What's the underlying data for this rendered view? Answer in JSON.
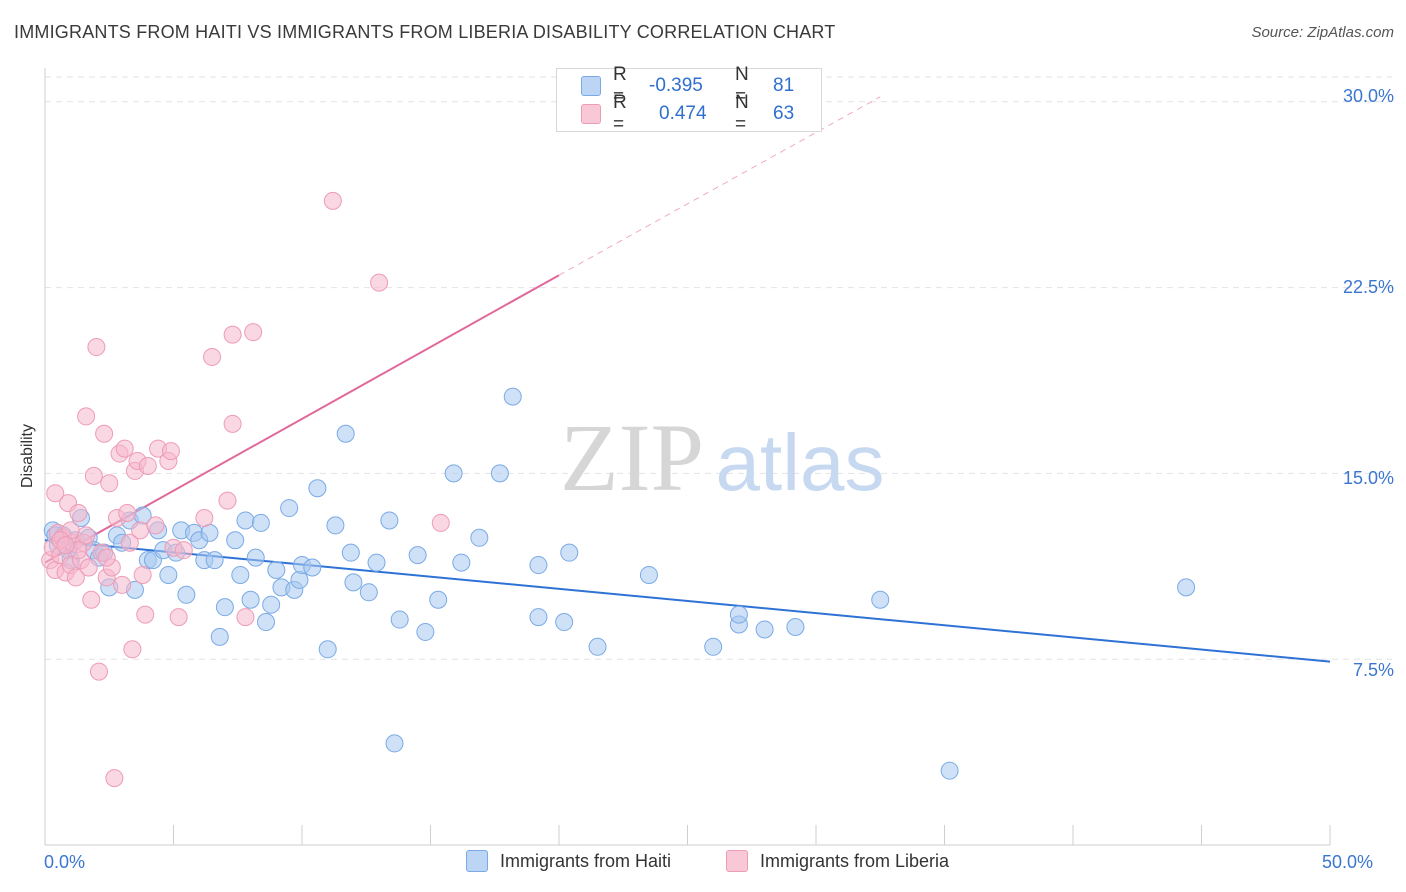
{
  "title": "IMMIGRANTS FROM HAITI VS IMMIGRANTS FROM LIBERIA DISABILITY CORRELATION CHART",
  "source": "Source: ZipAtlas.com",
  "watermark": {
    "zip": "ZIP",
    "atlas": "atlas"
  },
  "legend": {
    "rows": [
      {
        "r_label": "R =",
        "r_value": "-0.395",
        "n_label": "N =",
        "n_value": "81"
      },
      {
        "r_label": "R =",
        "r_value": "0.474",
        "n_label": "N =",
        "n_value": "63"
      }
    ]
  },
  "colors": {
    "haiti_fill": "#a8c8f0",
    "haiti_stroke": "#7aaae6",
    "haiti_line": "#2f72d6",
    "liberia_fill": "#f6b8cc",
    "liberia_stroke": "#ee9bb6",
    "liberia_line": "#e0689a",
    "axis_text": "#3a76d0",
    "grid": "#e2e2e2"
  },
  "chart_data": {
    "type": "scatter",
    "ylabel": "Disability",
    "xlabel": "",
    "xlim": [
      0,
      50
    ],
    "ylim": [
      0,
      31
    ],
    "x_tick_labels": [
      "0.0%",
      "50.0%"
    ],
    "y_ticks": [
      7.5,
      15.0,
      22.5,
      30.0
    ],
    "y_tick_labels": [
      "7.5%",
      "15.0%",
      "22.5%",
      "30.0%"
    ],
    "grid": true,
    "legend_position": "top-center",
    "series": [
      {
        "name": "Immigrants from Haiti",
        "r": -0.395,
        "n": 81,
        "trend": {
          "x": [
            0,
            50
          ],
          "y": [
            12.3,
            7.4
          ],
          "style": "solid"
        },
        "points": [
          [
            0.3,
            12.7
          ],
          [
            0.5,
            12.1
          ],
          [
            0.7,
            12.5
          ],
          [
            0.9,
            11.9
          ],
          [
            1.0,
            11.5
          ],
          [
            1.2,
            12.3
          ],
          [
            1.4,
            13.2
          ],
          [
            1.7,
            12.4
          ],
          [
            1.9,
            11.9
          ],
          [
            2.1,
            11.6
          ],
          [
            2.3,
            11.8
          ],
          [
            2.5,
            10.4
          ],
          [
            2.8,
            12.5
          ],
          [
            3.0,
            12.2
          ],
          [
            3.3,
            13.1
          ],
          [
            3.5,
            10.3
          ],
          [
            3.8,
            13.3
          ],
          [
            4.0,
            11.5
          ],
          [
            4.2,
            11.5
          ],
          [
            4.4,
            12.7
          ],
          [
            4.6,
            11.9
          ],
          [
            4.8,
            10.9
          ],
          [
            5.1,
            11.8
          ],
          [
            5.3,
            12.7
          ],
          [
            5.5,
            10.1
          ],
          [
            5.8,
            12.6
          ],
          [
            6.0,
            12.3
          ],
          [
            6.2,
            11.5
          ],
          [
            6.4,
            12.6
          ],
          [
            6.6,
            11.5
          ],
          [
            6.8,
            8.4
          ],
          [
            7.0,
            9.6
          ],
          [
            7.4,
            12.3
          ],
          [
            7.6,
            10.9
          ],
          [
            7.8,
            13.1
          ],
          [
            8.0,
            9.9
          ],
          [
            8.2,
            11.6
          ],
          [
            8.4,
            13.0
          ],
          [
            8.6,
            9.0
          ],
          [
            8.8,
            9.7
          ],
          [
            9.0,
            11.1
          ],
          [
            9.2,
            10.4
          ],
          [
            9.5,
            13.6
          ],
          [
            9.7,
            10.3
          ],
          [
            9.9,
            10.7
          ],
          [
            10.0,
            11.3
          ],
          [
            10.4,
            11.2
          ],
          [
            10.6,
            14.4
          ],
          [
            11.0,
            7.9
          ],
          [
            11.3,
            12.9
          ],
          [
            11.7,
            16.6
          ],
          [
            11.9,
            11.8
          ],
          [
            12.0,
            10.6
          ],
          [
            12.6,
            10.2
          ],
          [
            12.9,
            11.4
          ],
          [
            13.4,
            13.1
          ],
          [
            13.6,
            4.1
          ],
          [
            13.8,
            9.1
          ],
          [
            14.5,
            11.7
          ],
          [
            14.8,
            8.6
          ],
          [
            15.3,
            9.9
          ],
          [
            15.9,
            15.0
          ],
          [
            16.2,
            11.4
          ],
          [
            16.9,
            12.4
          ],
          [
            17.7,
            15.0
          ],
          [
            18.2,
            18.1
          ],
          [
            19.2,
            9.2
          ],
          [
            19.2,
            11.3
          ],
          [
            20.2,
            9.0
          ],
          [
            20.4,
            11.8
          ],
          [
            21.5,
            8.0
          ],
          [
            23.5,
            10.9
          ],
          [
            26.0,
            8.0
          ],
          [
            27.0,
            8.9
          ],
          [
            27.0,
            9.3
          ],
          [
            28.0,
            8.7
          ],
          [
            29.2,
            8.8
          ],
          [
            32.5,
            9.9
          ],
          [
            35.2,
            3.0
          ],
          [
            44.4,
            10.4
          ],
          [
            0.4,
            12.5
          ]
        ]
      },
      {
        "name": "Immigrants from Liberia",
        "r": 0.474,
        "n": 63,
        "trend": {
          "x": [
            0,
            20
          ],
          "y": [
            11.4,
            23.0
          ],
          "style": "solid",
          "dash_extension": {
            "x": [
              20,
              32.5
            ],
            "y": [
              23.0,
              30.2
            ]
          }
        },
        "points": [
          [
            0.2,
            11.5
          ],
          [
            0.3,
            12.0
          ],
          [
            0.4,
            11.1
          ],
          [
            0.4,
            14.2
          ],
          [
            0.5,
            12.6
          ],
          [
            0.6,
            11.7
          ],
          [
            0.7,
            12.4
          ],
          [
            0.8,
            11.0
          ],
          [
            0.9,
            13.8
          ],
          [
            1.0,
            11.3
          ],
          [
            1.1,
            12.2
          ],
          [
            1.2,
            10.8
          ],
          [
            1.3,
            13.4
          ],
          [
            1.4,
            11.5
          ],
          [
            1.5,
            12.2
          ],
          [
            1.6,
            17.3
          ],
          [
            1.7,
            11.2
          ],
          [
            1.8,
            9.9
          ],
          [
            1.9,
            14.9
          ],
          [
            2.0,
            20.1
          ],
          [
            2.1,
            7.0
          ],
          [
            2.2,
            11.8
          ],
          [
            2.3,
            16.6
          ],
          [
            2.4,
            10.8
          ],
          [
            2.5,
            14.6
          ],
          [
            2.6,
            11.2
          ],
          [
            2.7,
            2.7
          ],
          [
            2.8,
            13.2
          ],
          [
            2.9,
            15.8
          ],
          [
            3.0,
            10.5
          ],
          [
            3.1,
            16.0
          ],
          [
            3.2,
            13.4
          ],
          [
            3.3,
            12.2
          ],
          [
            3.4,
            7.9
          ],
          [
            3.5,
            15.1
          ],
          [
            3.6,
            15.5
          ],
          [
            3.7,
            12.7
          ],
          [
            3.8,
            10.9
          ],
          [
            3.9,
            9.3
          ],
          [
            4.0,
            15.3
          ],
          [
            4.3,
            12.9
          ],
          [
            4.4,
            16.0
          ],
          [
            4.8,
            15.5
          ],
          [
            4.9,
            15.9
          ],
          [
            5.0,
            12.0
          ],
          [
            5.2,
            9.2
          ],
          [
            5.4,
            11.9
          ],
          [
            6.2,
            13.2
          ],
          [
            6.5,
            19.7
          ],
          [
            7.1,
            13.9
          ],
          [
            7.3,
            17.0
          ],
          [
            7.3,
            20.6
          ],
          [
            7.8,
            9.2
          ],
          [
            8.1,
            20.7
          ],
          [
            11.2,
            26.0
          ],
          [
            13.0,
            22.7
          ],
          [
            15.4,
            13.0
          ],
          [
            1.0,
            12.7
          ],
          [
            1.3,
            11.9
          ],
          [
            0.6,
            12.3
          ],
          [
            2.4,
            11.6
          ],
          [
            0.8,
            12.1
          ],
          [
            1.6,
            12.5
          ]
        ]
      }
    ]
  }
}
